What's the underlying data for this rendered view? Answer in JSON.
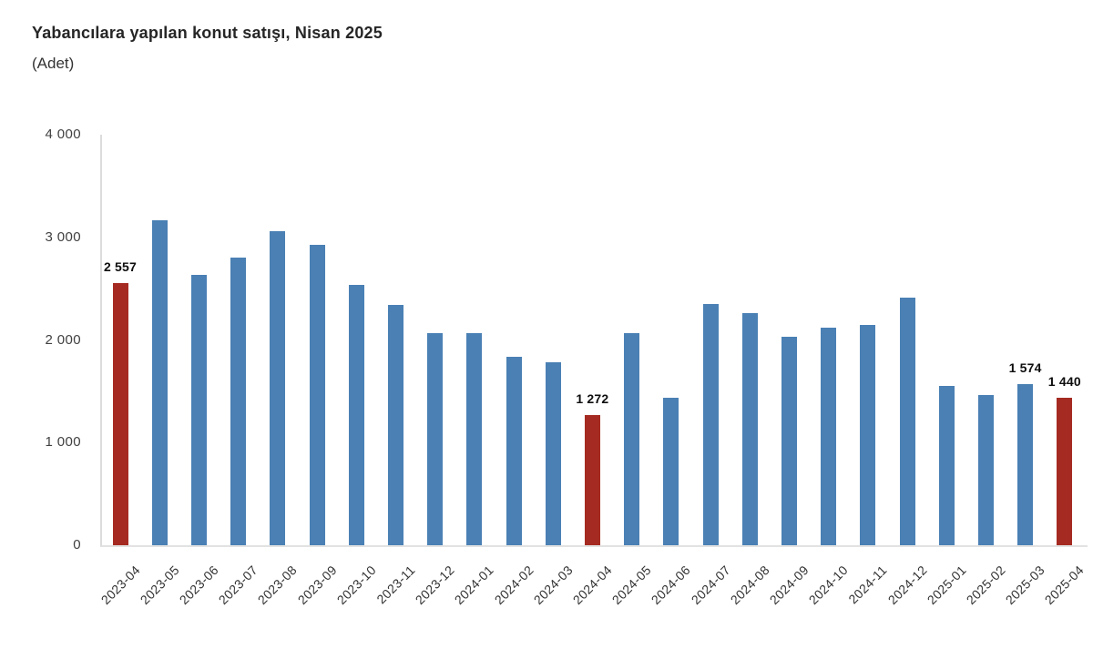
{
  "chart_data": {
    "type": "bar",
    "title": "Yabancılara yapılan konut satışı, Nisan 2025",
    "unit_label": "(Adet)",
    "xlabel": "",
    "ylabel": "(Adet)",
    "categories": [
      "2023-04",
      "2023-05",
      "2023-06",
      "2023-07",
      "2023-08",
      "2023-09",
      "2023-10",
      "2023-11",
      "2023-12",
      "2024-01",
      "2024-02",
      "2024-03",
      "2024-04",
      "2024-05",
      "2024-06",
      "2024-07",
      "2024-08",
      "2024-09",
      "2024-10",
      "2024-11",
      "2024-12",
      "2025-01",
      "2025-02",
      "2025-03",
      "2025-04"
    ],
    "values": [
      2557,
      3170,
      2630,
      2800,
      3060,
      2930,
      2540,
      2340,
      2070,
      2070,
      1840,
      1780,
      1272,
      2070,
      1440,
      2350,
      2260,
      2030,
      2120,
      2150,
      2410,
      1550,
      1460,
      1574,
      1440
    ],
    "highlight_indices": [
      0,
      12,
      24
    ],
    "highlighted_categories": [
      "2023-04",
      "2024-04",
      "2025-04"
    ],
    "data_labels": [
      {
        "index": 0,
        "text": "2 557"
      },
      {
        "index": 12,
        "text": "1 272"
      },
      {
        "index": 23,
        "text": "1 574"
      },
      {
        "index": 24,
        "text": "1 440"
      }
    ],
    "colors": {
      "bar": "#4a80b4",
      "highlight": "#a52b22",
      "axis_line": "#dcdcdc",
      "tick_text": "#404040"
    },
    "ylim": [
      0,
      4000
    ],
    "yticks": [
      {
        "value": 4000,
        "label": "4 000"
      },
      {
        "value": 3000,
        "label": "3 000"
      },
      {
        "value": 2000,
        "label": "2 000"
      },
      {
        "value": 1000,
        "label": "1 000"
      },
      {
        "value": 0,
        "label": "0"
      }
    ],
    "grid": false,
    "legend": false
  }
}
